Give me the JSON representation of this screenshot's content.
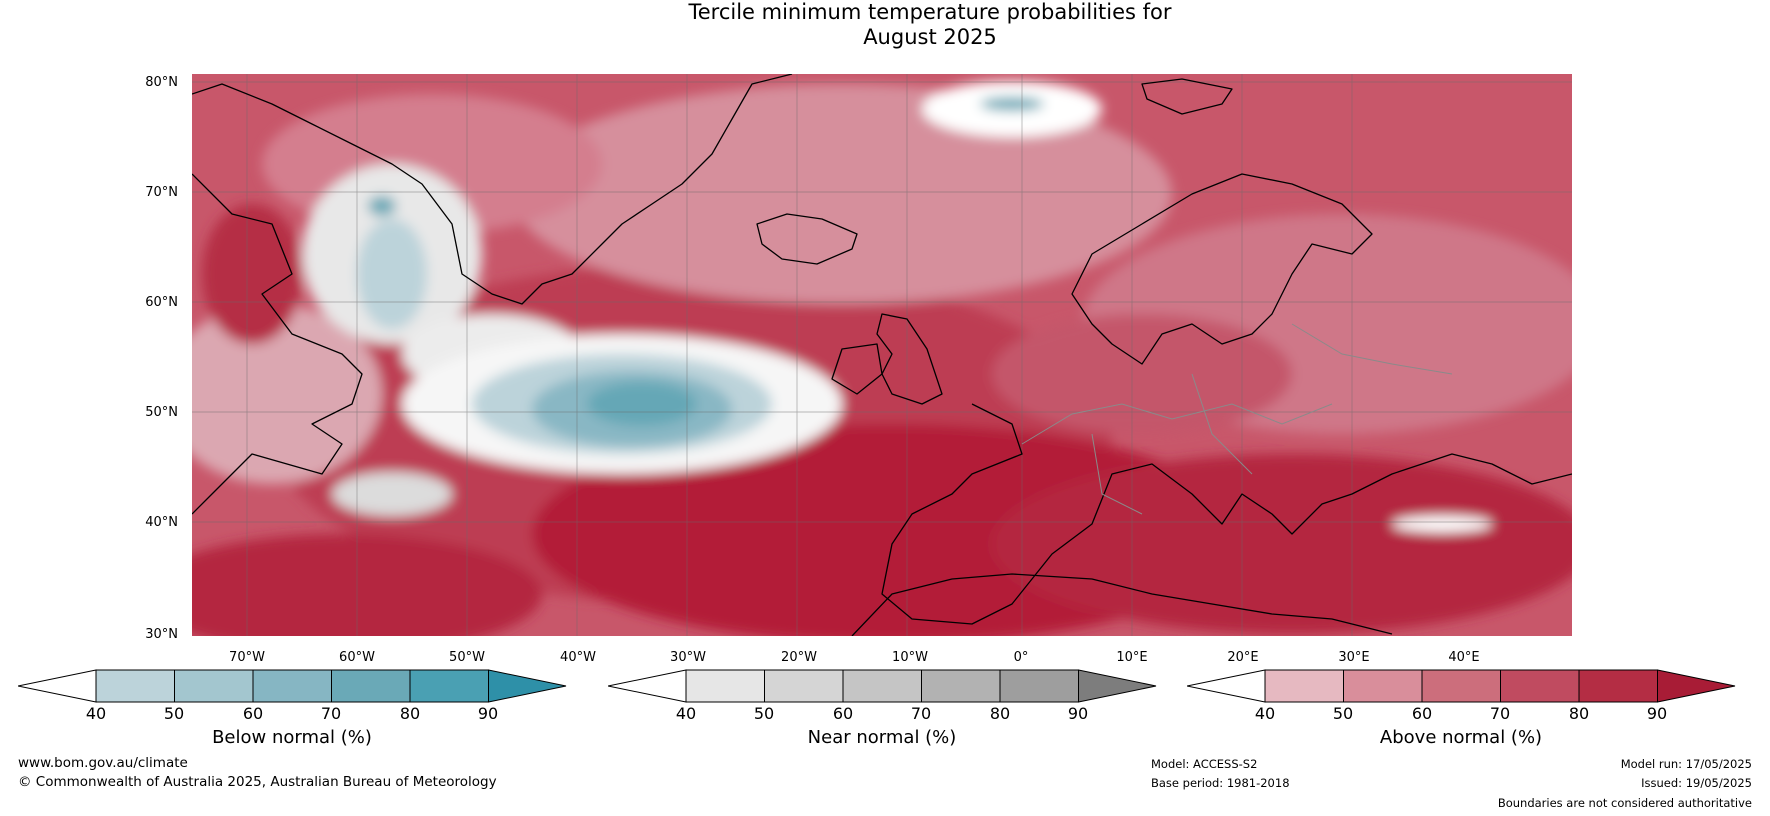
{
  "title_line1": "Tercile minimum temperature probabilities for",
  "title_line2": "August 2025",
  "lat_labels": [
    "80°N",
    "70°N",
    "60°N",
    "50°N",
    "40°N",
    "30°N"
  ],
  "lon_labels": [
    "70°W",
    "60°W",
    "50°W",
    "40°W",
    "30°W",
    "20°W",
    "10°W",
    "0°",
    "10°E",
    "20°E",
    "30°E",
    "40°E"
  ],
  "colorbars": [
    {
      "label": "Below normal (%)",
      "ticks": [
        "40",
        "50",
        "60",
        "70",
        "80",
        "90"
      ],
      "colors": [
        "#ffffff",
        "#bcd3da",
        "#a3c6cf",
        "#86b6c3",
        "#6aa9b7",
        "#4aa0b3",
        "#2e90a8"
      ]
    },
    {
      "label": "Near normal (%)",
      "ticks": [
        "40",
        "50",
        "60",
        "70",
        "80",
        "90"
      ],
      "colors": [
        "#ffffff",
        "#e6e6e6",
        "#d5d5d5",
        "#c5c5c5",
        "#b2b2b2",
        "#9e9e9e",
        "#7d7d7d"
      ]
    },
    {
      "label": "Above normal (%)",
      "ticks": [
        "40",
        "50",
        "60",
        "70",
        "80",
        "90"
      ],
      "colors": [
        "#ffffff",
        "#e6b9c1",
        "#d98e9b",
        "#cc6e7c",
        "#c04b60",
        "#b42d44",
        "#a81c36"
      ]
    }
  ],
  "footer": {
    "website": "www.bom.gov.au/climate",
    "copyright": "© Commonwealth of Australia 2025, Australian Bureau of Meteorology",
    "model": "Model: ACCESS-S2",
    "base_period": "Base period: 1981-2018",
    "model_run": "Model run: 17/05/2025",
    "issued": "Issued: 19/05/2025",
    "disclaimer": "Boundaries are not considered authoritative"
  }
}
